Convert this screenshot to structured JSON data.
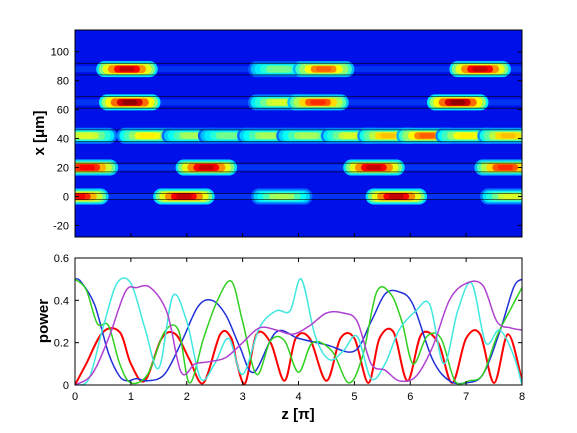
{
  "chart_data": [
    {
      "type": "heatmap",
      "ylabel": "x [μm]",
      "xlim": [
        0,
        8
      ],
      "ylim": [
        -28,
        115
      ],
      "yticks": [
        -20,
        0,
        20,
        40,
        60,
        80,
        100
      ],
      "colormap": "jet",
      "waveguide_centers": [
        0,
        20,
        42,
        65,
        88
      ],
      "waveguide_boundaries": [
        -2,
        2,
        17,
        23,
        38,
        46,
        61,
        69,
        84,
        92
      ],
      "guides": [
        {
          "x": 88,
          "z_centers": [
            0.93,
            3.65,
            4.45,
            7.25
          ],
          "amps": [
            0.95,
            0.5,
            0.8,
            0.95
          ]
        },
        {
          "x": 65,
          "z_centers": [
            0.98,
            3.65,
            4.35,
            6.85
          ],
          "amps": [
            1.0,
            0.6,
            0.85,
            1.0
          ]
        },
        {
          "x": 42,
          "z_centers": [
            0.2,
            1.3,
            2.1,
            2.75,
            3.45,
            4.15,
            4.95,
            5.6,
            6.3,
            7.0,
            7.75
          ],
          "amps": [
            0.6,
            0.65,
            0.55,
            0.5,
            0.55,
            0.55,
            0.6,
            0.7,
            0.8,
            0.65,
            0.7
          ]
        },
        {
          "x": 20,
          "z_centers": [
            0.22,
            2.35,
            5.35,
            7.7
          ],
          "amps": [
            0.9,
            0.95,
            0.95,
            0.85
          ]
        },
        {
          "x": 0,
          "z_centers": [
            0.05,
            1.95,
            3.7,
            5.75,
            7.8
          ],
          "amps": [
            0.9,
            0.95,
            0.55,
            0.95,
            0.6
          ]
        }
      ]
    },
    {
      "type": "line",
      "xlabel": "z [π]",
      "ylabel": "power",
      "xlim": [
        0,
        8
      ],
      "ylim": [
        0,
        0.6
      ],
      "xticks": [
        0,
        1,
        2,
        3,
        4,
        5,
        6,
        7,
        8
      ],
      "yticks": [
        0,
        0.2,
        0.4,
        0.6
      ],
      "ytick_labels": [
        "0",
        "0.2",
        "0.4",
        "0.6"
      ],
      "series": [
        {
          "color": "#ff0000",
          "width": 2.0,
          "x": [
            0,
            0.2,
            0.5,
            0.8,
            1.0,
            1.25,
            1.55,
            1.8,
            2.05,
            2.3,
            2.6,
            2.8,
            2.9,
            3.05,
            3.25,
            3.5,
            3.75,
            3.95,
            4.2,
            4.5,
            4.75,
            5.0,
            5.25,
            5.45,
            5.7,
            5.95,
            6.2,
            6.5,
            6.75,
            7.0,
            7.25,
            7.5,
            7.75,
            8.0
          ],
          "y": [
            0.0,
            0.1,
            0.25,
            0.25,
            0.1,
            0.02,
            0.22,
            0.24,
            0.12,
            0.01,
            0.24,
            0.22,
            0.1,
            0.01,
            0.24,
            0.2,
            0.02,
            0.22,
            0.22,
            0.02,
            0.22,
            0.22,
            0.01,
            0.22,
            0.25,
            0.02,
            0.24,
            0.2,
            0.01,
            0.22,
            0.24,
            0.01,
            0.24,
            0.02
          ]
        },
        {
          "color": "#2030d8",
          "width": 1.5,
          "x": [
            0,
            0.1,
            0.35,
            0.6,
            0.8,
            0.95,
            1.1,
            1.3,
            1.6,
            1.9,
            2.2,
            2.45,
            2.7,
            2.95,
            3.2,
            3.6,
            4.0,
            4.5,
            5.0,
            5.3,
            5.55,
            5.8,
            6.05,
            6.4,
            6.7,
            7.0,
            7.3,
            7.6,
            7.85,
            8.0
          ],
          "y": [
            0.5,
            0.49,
            0.38,
            0.15,
            0.04,
            0.02,
            0.03,
            0.02,
            0.05,
            0.2,
            0.37,
            0.4,
            0.33,
            0.18,
            0.06,
            0.25,
            0.22,
            0.19,
            0.16,
            0.3,
            0.43,
            0.44,
            0.38,
            0.12,
            0.02,
            0.01,
            0.05,
            0.25,
            0.46,
            0.5
          ]
        },
        {
          "color": "#30d020",
          "width": 1.5,
          "x": [
            0,
            0.2,
            0.4,
            0.6,
            0.8,
            1.0,
            1.3,
            1.6,
            1.85,
            2.05,
            2.3,
            2.55,
            2.8,
            3.0,
            3.25,
            3.5,
            3.75,
            4.0,
            4.25,
            4.6,
            4.9,
            5.15,
            5.4,
            5.65,
            5.85,
            6.05,
            6.3,
            6.55,
            6.8,
            7.05,
            7.3,
            7.55,
            7.8,
            8.0
          ],
          "y": [
            0.5,
            0.45,
            0.29,
            0.28,
            0.1,
            0.01,
            0.05,
            0.25,
            0.26,
            0.01,
            0.22,
            0.4,
            0.49,
            0.3,
            0.05,
            0.21,
            0.21,
            0.06,
            0.2,
            0.16,
            0.01,
            0.14,
            0.44,
            0.43,
            0.3,
            0.1,
            0.23,
            0.22,
            0.02,
            0.02,
            0.05,
            0.23,
            0.36,
            0.46
          ]
        },
        {
          "color": "#40e8e0",
          "width": 1.5,
          "x": [
            0,
            0.25,
            0.5,
            0.75,
            1.0,
            1.25,
            1.5,
            1.75,
            2.0,
            2.25,
            2.5,
            2.75,
            3.0,
            3.3,
            3.6,
            3.85,
            4.05,
            4.3,
            4.55,
            4.8,
            5.05,
            5.3,
            5.55,
            5.8,
            6.1,
            6.35,
            6.6,
            6.85,
            7.1,
            7.35,
            7.6,
            7.85,
            8.0
          ],
          "y": [
            0.0,
            0.03,
            0.27,
            0.48,
            0.48,
            0.27,
            0.08,
            0.42,
            0.3,
            0.03,
            0.1,
            0.22,
            0.05,
            0.27,
            0.35,
            0.35,
            0.5,
            0.23,
            0.12,
            0.16,
            0.23,
            0.03,
            0.1,
            0.26,
            0.35,
            0.38,
            0.1,
            0.35,
            0.48,
            0.2,
            0.26,
            0.14,
            0.0
          ]
        },
        {
          "color": "#b040d0",
          "width": 1.5,
          "x": [
            0,
            0.3,
            0.6,
            0.9,
            1.1,
            1.35,
            1.65,
            1.9,
            2.15,
            2.4,
            2.7,
            3.0,
            3.3,
            3.6,
            3.9,
            4.2,
            4.5,
            4.8,
            5.05,
            5.3,
            5.55,
            5.8,
            6.1,
            6.4,
            6.7,
            7.0,
            7.3,
            7.55,
            7.8,
            8.0
          ],
          "y": [
            0.0,
            0.05,
            0.22,
            0.44,
            0.46,
            0.46,
            0.34,
            0.06,
            0.1,
            0.11,
            0.13,
            0.2,
            0.27,
            0.26,
            0.24,
            0.28,
            0.34,
            0.34,
            0.3,
            0.1,
            0.07,
            0.02,
            0.04,
            0.18,
            0.4,
            0.48,
            0.47,
            0.3,
            0.27,
            0.26
          ]
        }
      ]
    }
  ]
}
